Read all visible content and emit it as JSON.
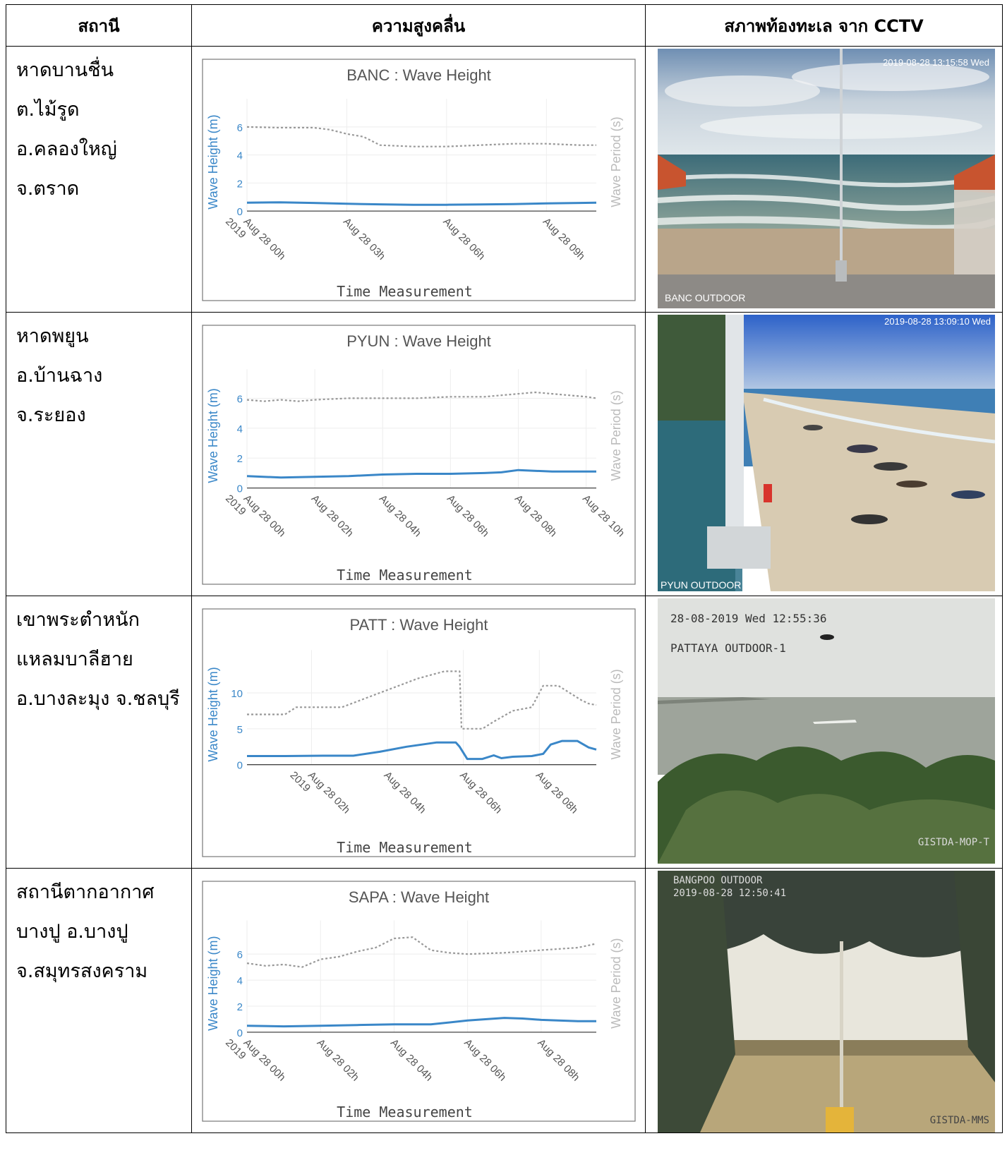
{
  "header": {
    "station": "สถานี",
    "wave": "ความสูงคลื่น",
    "cctv": "สภาพท้องทะเล จาก CCTV"
  },
  "rows": [
    {
      "station_lines": [
        "หาดบานชื่น",
        "ต.ไม้รูด",
        "อ.คลองใหญ่",
        "จ.ตราด"
      ],
      "cam_timestamp": "2019-08-28 13:15:58 Wed",
      "cam_label": "BANC OUTDOOR",
      "cam_label2": "",
      "cam_watermark": ""
    },
    {
      "station_lines": [
        "หาดพยูน",
        "อ.บ้านฉาง",
        "จ.ระยอง"
      ],
      "cam_timestamp": "2019-08-28 13:09:10 Wed",
      "cam_label": "PYUN OUTDOOR",
      "cam_label2": "",
      "cam_watermark": ""
    },
    {
      "station_lines": [
        "เขาพระตำหนัก",
        "แหลมบาลีฮาย",
        "อ.บางละมุง จ.ชลบุรี"
      ],
      "cam_timestamp": "28-08-2019 Wed 12:55:36",
      "cam_label": "PATTAYA OUTDOOR-1",
      "cam_label2": "",
      "cam_watermark": "GISTDA-MOP-T"
    },
    {
      "station_lines": [
        "สถานีตากอากาศ",
        "บางปู อ.บางปู",
        "จ.สมุทรสงคราม"
      ],
      "cam_timestamp": "2019-08-28 12:50:41",
      "cam_label": "BANGPOO OUTDOOR",
      "cam_label2": "",
      "cam_watermark": "GISTDA-MMS"
    }
  ],
  "chart_data": [
    {
      "type": "line",
      "title": "BANC : Wave Height",
      "xlabel": "Time Measurement",
      "ylabel": "Wave Height (m)",
      "y2label": "Wave Period (s)",
      "x_range": [
        0,
        10.5
      ],
      "ylim": [
        0,
        7
      ],
      "y2lim": [
        0,
        7
      ],
      "yticks": [
        0,
        2,
        4,
        6
      ],
      "xticks": [
        {
          "x": 0,
          "label": "Aug 28 00h",
          "sub": "2019"
        },
        {
          "x": 3,
          "label": "Aug 28 03h"
        },
        {
          "x": 6,
          "label": "Aug 28 06h"
        },
        {
          "x": 9,
          "label": "Aug 28 09h"
        }
      ],
      "series": [
        {
          "name": "Wave Height",
          "axis": "y",
          "color": "#3a87c8",
          "dash": false,
          "x": [
            0,
            1,
            2,
            3,
            4,
            5,
            6,
            7,
            8,
            9,
            10,
            10.5
          ],
          "y": [
            0.6,
            0.62,
            0.58,
            0.52,
            0.48,
            0.45,
            0.45,
            0.47,
            0.5,
            0.55,
            0.58,
            0.6
          ]
        },
        {
          "name": "Wave Period",
          "axis": "y2",
          "color": "#999999",
          "dash": true,
          "x": [
            0,
            1,
            2,
            2.5,
            3,
            3.5,
            4,
            5,
            6,
            7,
            8,
            9,
            10,
            10.5
          ],
          "y": [
            6.0,
            5.95,
            5.95,
            5.8,
            5.5,
            5.3,
            4.7,
            4.6,
            4.6,
            4.7,
            4.8,
            4.8,
            4.7,
            4.7
          ]
        }
      ]
    },
    {
      "type": "line",
      "title": "PYUN : Wave Height",
      "xlabel": "Time Measurement",
      "ylabel": "Wave Height (m)",
      "y2label": "Wave Period (s)",
      "x_range": [
        0,
        10.3
      ],
      "ylim": [
        0,
        7
      ],
      "y2lim": [
        0,
        7
      ],
      "yticks": [
        0,
        2,
        4,
        6
      ],
      "xticks": [
        {
          "x": 0,
          "label": "Aug 28 00h",
          "sub": "2019"
        },
        {
          "x": 2,
          "label": "Aug 28 02h"
        },
        {
          "x": 4,
          "label": "Aug 28 04h"
        },
        {
          "x": 6,
          "label": "Aug 28 06h"
        },
        {
          "x": 8,
          "label": "Aug 28 08h"
        },
        {
          "x": 10,
          "label": "Aug 28 10h"
        }
      ],
      "series": [
        {
          "name": "Wave Height",
          "axis": "y",
          "color": "#3a87c8",
          "dash": false,
          "x": [
            0,
            1,
            2,
            3,
            4,
            5,
            6,
            7,
            7.5,
            8,
            9,
            10.3
          ],
          "y": [
            0.8,
            0.7,
            0.75,
            0.8,
            0.9,
            0.95,
            0.95,
            1.0,
            1.05,
            1.2,
            1.1,
            1.1
          ]
        },
        {
          "name": "Wave Period",
          "axis": "y2",
          "color": "#999999",
          "dash": true,
          "x": [
            0,
            0.5,
            1,
            1.5,
            2,
            3,
            4,
            5,
            6,
            7,
            8,
            8.5,
            9,
            10,
            10.3
          ],
          "y": [
            5.9,
            5.8,
            5.9,
            5.8,
            5.9,
            6.0,
            6.0,
            6.0,
            6.1,
            6.1,
            6.3,
            6.4,
            6.3,
            6.1,
            6.0
          ]
        }
      ]
    },
    {
      "type": "line",
      "title": "PATT : Wave Height",
      "xlabel": "Time Measurement",
      "ylabel": "Wave Height (m)",
      "y2label": "Wave Period (s)",
      "x_range": [
        0,
        9.2
      ],
      "ylim": [
        0,
        14
      ],
      "y2lim": [
        0,
        14
      ],
      "yticks": [
        0,
        5,
        10
      ],
      "xticks": [
        {
          "x": 1.7,
          "label": "Aug 28 02h",
          "sub": "2019"
        },
        {
          "x": 3.7,
          "label": "Aug 28 04h"
        },
        {
          "x": 5.7,
          "label": "Aug 28 06h"
        },
        {
          "x": 7.7,
          "label": "Aug 28 08h"
        }
      ],
      "series": [
        {
          "name": "Wave Height",
          "axis": "y",
          "color": "#3a87c8",
          "dash": false,
          "x": [
            0,
            1,
            2,
            2.8,
            3.5,
            4.2,
            5,
            5.5,
            5.6,
            5.8,
            6.2,
            6.5,
            6.7,
            7,
            7.5,
            7.8,
            8,
            8.3,
            8.7,
            9.0,
            9.2
          ],
          "y": [
            1.2,
            1.2,
            1.25,
            1.25,
            1.8,
            2.5,
            3.1,
            3.1,
            2.5,
            0.8,
            0.8,
            1.3,
            0.9,
            1.1,
            1.2,
            1.5,
            2.8,
            3.3,
            3.3,
            2.4,
            2.1
          ]
        },
        {
          "name": "Wave Period",
          "axis": "y2",
          "color": "#999999",
          "dash": true,
          "x": [
            0,
            1,
            1.3,
            2.5,
            3.5,
            4.5,
            5.2,
            5.6,
            5.65,
            6.2,
            6.5,
            7,
            7.5,
            7.8,
            8.2,
            8.8,
            9.0,
            9.2
          ],
          "y": [
            7,
            7,
            8,
            8,
            10,
            12,
            13,
            13,
            5,
            5,
            6,
            7.5,
            8,
            11,
            11,
            9,
            8.5,
            8.3
          ]
        }
      ]
    },
    {
      "type": "line",
      "title": "SAPA : Wave Height",
      "xlabel": "Time Measurement",
      "ylabel": "Wave Height (m)",
      "y2label": "Wave Period (s)",
      "x_range": [
        0,
        9.5
      ],
      "ylim": [
        0,
        7.5
      ],
      "y2lim": [
        0,
        7.5
      ],
      "yticks": [
        0,
        2,
        4,
        6
      ],
      "xticks": [
        {
          "x": 0,
          "label": "Aug 28 00h",
          "sub": "2019"
        },
        {
          "x": 2,
          "label": "Aug 28 02h"
        },
        {
          "x": 4,
          "label": "Aug 28 04h"
        },
        {
          "x": 6,
          "label": "Aug 28 06h"
        },
        {
          "x": 8,
          "label": "Aug 28 08h"
        }
      ],
      "series": [
        {
          "name": "Wave Height",
          "axis": "y",
          "color": "#3a87c8",
          "dash": false,
          "x": [
            0,
            1,
            2,
            3,
            4,
            5,
            6,
            7,
            7.5,
            8,
            9,
            9.5
          ],
          "y": [
            0.5,
            0.45,
            0.5,
            0.55,
            0.6,
            0.6,
            0.9,
            1.1,
            1.05,
            0.95,
            0.85,
            0.85
          ]
        },
        {
          "name": "Wave Period",
          "axis": "y2",
          "color": "#999999",
          "dash": true,
          "x": [
            0,
            0.5,
            1,
            1.5,
            2,
            2.5,
            3,
            3.5,
            4,
            4.5,
            5,
            5.5,
            6,
            7,
            8,
            9,
            9.5
          ],
          "y": [
            5.3,
            5.1,
            5.2,
            5.0,
            5.6,
            5.8,
            6.2,
            6.5,
            7.2,
            7.3,
            6.3,
            6.1,
            6.0,
            6.1,
            6.3,
            6.5,
            6.8
          ]
        }
      ]
    }
  ]
}
